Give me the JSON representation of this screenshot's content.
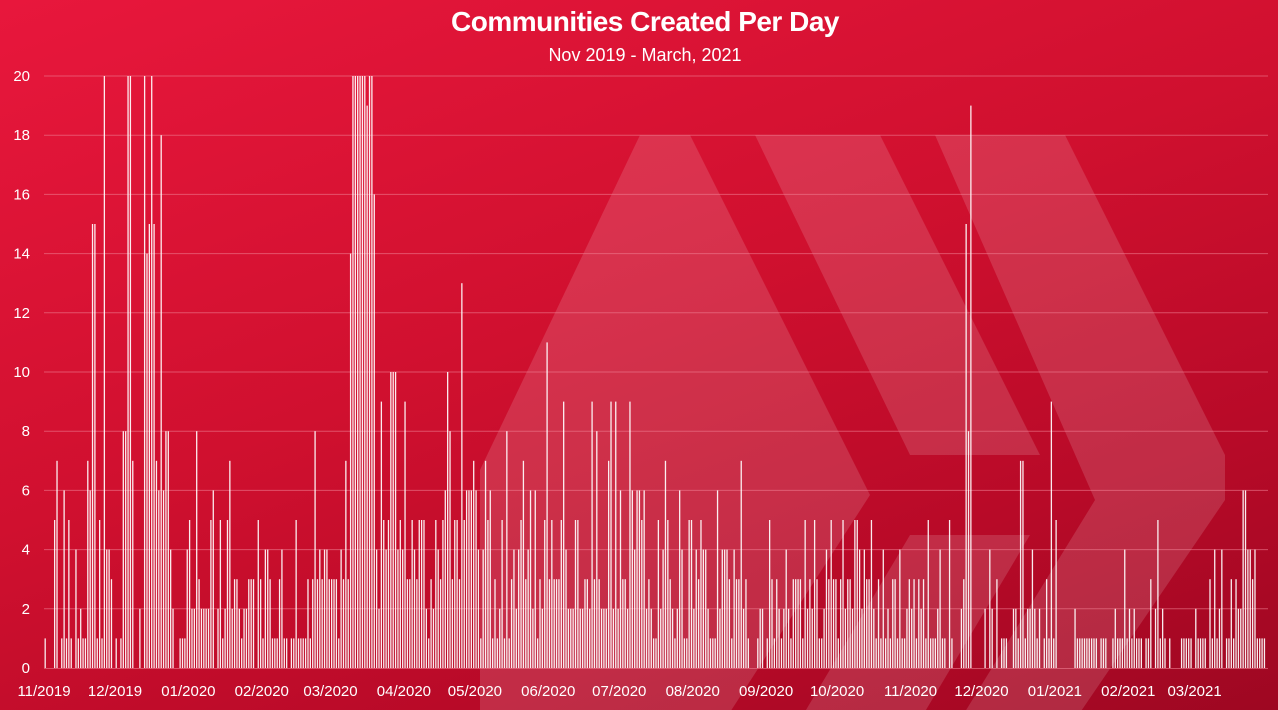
{
  "colors": {
    "background": "#d81236",
    "bar": "#ffffff",
    "grid": "#ef7d91"
  },
  "chart_data": {
    "type": "bar",
    "title": "Communities Created Per Day",
    "subtitle": "Nov 2019 - March, 2021",
    "xlabel": "",
    "ylabel": "",
    "ylim": [
      0,
      20
    ],
    "yticks": [
      "0",
      "2",
      "4",
      "6",
      "8",
      "10",
      "12",
      "14",
      "16",
      "18",
      "20"
    ],
    "grid": true,
    "legend": "none",
    "xticks": [
      "11/2019",
      "12/2019",
      "01/2020",
      "02/2020",
      "03/2020",
      "04/2020",
      "05/2020",
      "06/2020",
      "07/2020",
      "08/2020",
      "09/2020",
      "10/2020",
      "11/2020",
      "12/2020",
      "01/2021",
      "02/2021",
      "03/2021"
    ],
    "x_start": "2019-11-01",
    "x_end": "2021-03-31",
    "series": [
      {
        "values": [
          1,
          0,
          0,
          0,
          5,
          7,
          0,
          1,
          6,
          1,
          5,
          1,
          0,
          4,
          1,
          2,
          1,
          1,
          7,
          6,
          15,
          15,
          1,
          5,
          1,
          20,
          4,
          4,
          3,
          0,
          1,
          0,
          1,
          8,
          8,
          20,
          20,
          7,
          0,
          0,
          2,
          0,
          20,
          14,
          15,
          20,
          15,
          7,
          6,
          18,
          6,
          8,
          8,
          4,
          2,
          0,
          0,
          1,
          1,
          1,
          4,
          5,
          2,
          2,
          8,
          3,
          2,
          2,
          2,
          2,
          5,
          6,
          0,
          2,
          5,
          1,
          2,
          5,
          7,
          2,
          3,
          3,
          2,
          1,
          2,
          2,
          3,
          3,
          3,
          0,
          5,
          3,
          1,
          4,
          4,
          3,
          1,
          1,
          1,
          3,
          4,
          1,
          1,
          0,
          1,
          1,
          5,
          1,
          1,
          1,
          1,
          3,
          1,
          3,
          8,
          3,
          4,
          3,
          4,
          4,
          3,
          3,
          3,
          3,
          1,
          4,
          3,
          7,
          3,
          14,
          20,
          20,
          20,
          20,
          20,
          20,
          19,
          20,
          20,
          16,
          4,
          2,
          9,
          5,
          4,
          5,
          10,
          10,
          10,
          4,
          5,
          4,
          9,
          3,
          3,
          5,
          4,
          3,
          5,
          5,
          5,
          2,
          1,
          3,
          2,
          5,
          4,
          3,
          5,
          6,
          10,
          8,
          3,
          5,
          5,
          3,
          13,
          5,
          6,
          6,
          6,
          7,
          6,
          4,
          1,
          4,
          7,
          5,
          6,
          1,
          3,
          1,
          2,
          5,
          1,
          8,
          1,
          3,
          4,
          2,
          4,
          5,
          7,
          3,
          4,
          6,
          2,
          6,
          1,
          3,
          2,
          5,
          11,
          3,
          5,
          3,
          3,
          3,
          5,
          9,
          4,
          2,
          2,
          2,
          5,
          5,
          2,
          2,
          3,
          3,
          2,
          9,
          3,
          8,
          3,
          2,
          2,
          2,
          7,
          9,
          2,
          9,
          2,
          6,
          3,
          3,
          2,
          9,
          6,
          4,
          6,
          6,
          5,
          6,
          2,
          3,
          2,
          1,
          1,
          5,
          2,
          4,
          7,
          5,
          3,
          2,
          1,
          2,
          6,
          4,
          1,
          1,
          5,
          5,
          2,
          4,
          3,
          5,
          4,
          4,
          2,
          1,
          1,
          1,
          6,
          2,
          4,
          4,
          4,
          3,
          1,
          4,
          3,
          3,
          7,
          2,
          3,
          1,
          0,
          0,
          0,
          1,
          2,
          2,
          0,
          1,
          5,
          3,
          1,
          3,
          2,
          1,
          2,
          4,
          2,
          1,
          3,
          3,
          3,
          3,
          1,
          5,
          2,
          3,
          2,
          5,
          3,
          1,
          1,
          2,
          4,
          3,
          5,
          3,
          3,
          1,
          3,
          5,
          2,
          3,
          3,
          2,
          5,
          5,
          4,
          2,
          4,
          3,
          3,
          5,
          2,
          1,
          3,
          1,
          4,
          1,
          2,
          1,
          3,
          3,
          1,
          4,
          1,
          1,
          2,
          3,
          2,
          3,
          1,
          3,
          2,
          3,
          1,
          5,
          1,
          1,
          1,
          2,
          4,
          1,
          1,
          0,
          5,
          1,
          0,
          0,
          0,
          2,
          3,
          15,
          8,
          19,
          0,
          0,
          0,
          0,
          0,
          2,
          0,
          4,
          2,
          0,
          3,
          0,
          1,
          1,
          1,
          0,
          0,
          2,
          2,
          1,
          7,
          7,
          1,
          2,
          2,
          4,
          2,
          1,
          2,
          0,
          1,
          3,
          1,
          9,
          1,
          5,
          0,
          0,
          0,
          0,
          0,
          0,
          0,
          2,
          1,
          1,
          1,
          1,
          1,
          1,
          1,
          1,
          1,
          0,
          1,
          1,
          1,
          0,
          0,
          1,
          2,
          1,
          1,
          1,
          4,
          1,
          2,
          1,
          2,
          1,
          1,
          1,
          0,
          1,
          1,
          3,
          0,
          2,
          5,
          1,
          2,
          1,
          0,
          1,
          0,
          0,
          0,
          0,
          1,
          1,
          1,
          1,
          1,
          0,
          2,
          1,
          1,
          1,
          1,
          0,
          3,
          1,
          4,
          1,
          2,
          4,
          0,
          1,
          1,
          3,
          1,
          3,
          2,
          2,
          6,
          6,
          4,
          4,
          3,
          4,
          1,
          1,
          1,
          1,
          0,
          1,
          1,
          0,
          0,
          0,
          1,
          2,
          2,
          1,
          3,
          2,
          2,
          3,
          1,
          1,
          4,
          1,
          1,
          3,
          2,
          4,
          1,
          1,
          3,
          3,
          4,
          3,
          5,
          5,
          3,
          1,
          4,
          3,
          1,
          3,
          1,
          4,
          3,
          2,
          2,
          3,
          2,
          1,
          1,
          0,
          0,
          0,
          0,
          0,
          0,
          3,
          2,
          3,
          3,
          0,
          6,
          3,
          2,
          3,
          2,
          3,
          2,
          2,
          2,
          2,
          5,
          2,
          2,
          4,
          3,
          1,
          1
        ]
      }
    ]
  }
}
